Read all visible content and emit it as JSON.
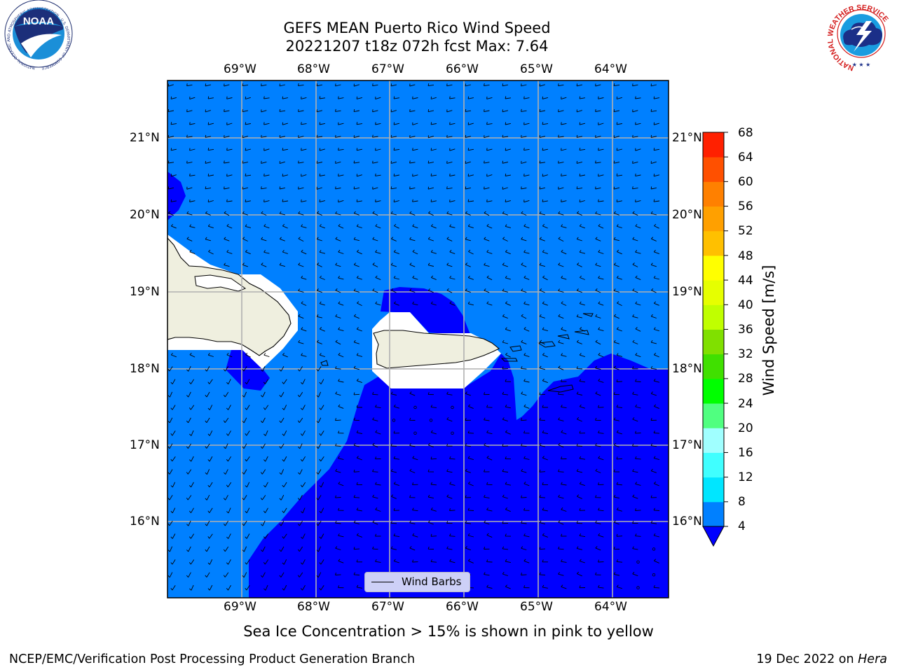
{
  "title": {
    "line1": "GEFS MEAN Puerto Rico Wind Speed",
    "line2": "20221207 t18z 072h fcst   Max: 7.64"
  },
  "map": {
    "lon_ticks": [
      "69°W",
      "68°W",
      "67°W",
      "66°W",
      "65°W",
      "64°W"
    ],
    "lat_ticks": [
      "21°N",
      "20°N",
      "19°N",
      "18°N",
      "17°N",
      "16°N"
    ],
    "extent": {
      "lon": [
        -69.8,
        -63.3
      ],
      "lat": [
        15.0,
        21.75
      ]
    },
    "gridlines": true,
    "land_color": "#efefdf",
    "ocean_color_4_8": "#0080ff",
    "ocean_color_below_4": "#0000ff"
  },
  "colorbar": {
    "label": "Wind Speed [m/s]",
    "ticks": [
      "68",
      "64",
      "60",
      "56",
      "52",
      "48",
      "44",
      "40",
      "36",
      "32",
      "28",
      "24",
      "20",
      "16",
      "12",
      "8",
      "4"
    ],
    "levels": [
      4,
      8,
      12,
      16,
      20,
      24,
      28,
      32,
      36,
      40,
      44,
      48,
      52,
      56,
      60,
      64,
      68
    ],
    "colors": [
      "#0080ff",
      "#00e6ff",
      "#40ffff",
      "#a0ffff",
      "#50ff80",
      "#00ff00",
      "#40e000",
      "#80e000",
      "#c0ff00",
      "#e6ff00",
      "#ffff00",
      "#ffc000",
      "#ffa000",
      "#ff8000",
      "#ff5000",
      "#ff2000"
    ],
    "under_color": "#0000ff"
  },
  "legend": {
    "label": "Wind Barbs"
  },
  "note": "Sea Ice Concentration > 15% is shown in pink to yellow",
  "footer": {
    "left": "NCEP/EMC/Verification Post Processing Product Generation Branch",
    "right_date": "19 Dec 2022 on ",
    "right_host": "Hera"
  },
  "logos": {
    "noaa": {
      "text": "NOAA",
      "ring": "NATIONAL OCEANIC AND ATMOSPHERIC ADMINISTRATION · U.S. DEPARTMENT OF COMMERCE"
    },
    "nws": {
      "ring": "NATIONAL WEATHER SERVICE"
    }
  }
}
